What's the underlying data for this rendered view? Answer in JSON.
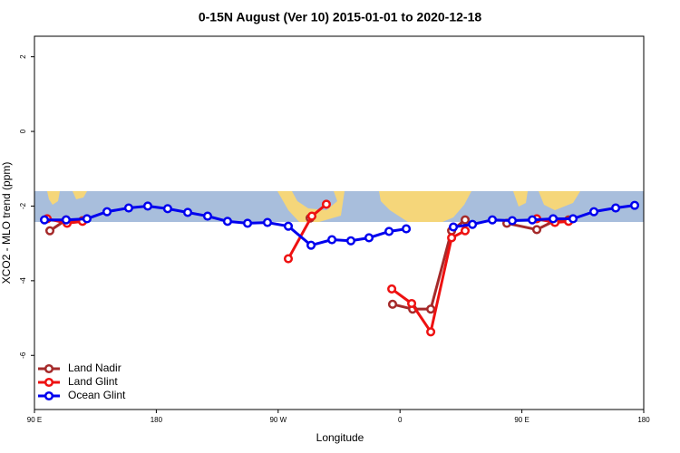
{
  "chart_data": {
    "type": "line",
    "title": "0-15N August (Ver 10)   2015-01-01 to 2020-12-18",
    "xlabel": "Longitude",
    "ylabel": "XCO2 - MLO trend (ppm)",
    "xlim": [
      90,
      540
    ],
    "ylim": [
      -7.45,
      2.55
    ],
    "xticks": [
      {
        "value": 90,
        "label": "90 E"
      },
      180,
      {
        "value": 270,
        "label": "90 W"
      },
      {
        "value": 360,
        "label": "0"
      },
      {
        "value": 450,
        "label": "90 E"
      },
      {
        "value": 540,
        "label": "180"
      }
    ],
    "yticks": [
      -6,
      -4,
      -2,
      0,
      2
    ],
    "legend": "bottom-left",
    "series": [
      {
        "name": "Land Nadir",
        "color": "#a52a2a",
        "x": [
          101.4,
          113.4,
          125.5,
          null,
          293.6,
          null,
          354.5,
          369.3,
          382.7,
          398.1,
          408.1,
          null,
          438.9,
          461.0,
          474.4,
          484.5
        ],
        "values": [
          -2.66,
          -2.37,
          -2.39,
          null,
          -2.32,
          null,
          -4.63,
          -4.76,
          -4.76,
          -2.66,
          -2.37,
          null,
          -2.46,
          -2.63,
          -2.39,
          -2.37
        ]
      },
      {
        "name": "Land Glint",
        "color": "#ee1111",
        "x": [
          99.4,
          114.1,
          125.5,
          null,
          277.5,
          294.9,
          305.6,
          null,
          353.9,
          368.6,
          382.7,
          398.1,
          408.1,
          null,
          461.0,
          474.4,
          484.5
        ],
        "values": [
          -2.34,
          -2.46,
          -2.41,
          null,
          -3.41,
          -2.27,
          -1.95,
          null,
          -4.22,
          -4.61,
          -5.37,
          -2.85,
          -2.66,
          null,
          -2.34,
          -2.44,
          -2.41
        ]
      },
      {
        "name": "Ocean Glint",
        "color": "#0000ee",
        "x": [
          97.4,
          113.4,
          128.8,
          143.6,
          159.6,
          173.7,
          188.4,
          203.2,
          217.9,
          232.6,
          247.4,
          262.1,
          277.5,
          294.3,
          309.7,
          323.7,
          337.1,
          351.9,
          364.6,
          null,
          399.4,
          413.5,
          428.2,
          442.9,
          457.7,
          473.1,
          487.8,
          503.2,
          519.3,
          533.3
        ],
        "values": [
          -2.37,
          -2.37,
          -2.34,
          -2.15,
          -2.05,
          -2.0,
          -2.07,
          -2.17,
          -2.27,
          -2.41,
          -2.46,
          -2.44,
          -2.54,
          -3.05,
          -2.9,
          -2.93,
          -2.85,
          -2.68,
          -2.61,
          null,
          -2.56,
          -2.49,
          -2.37,
          -2.39,
          -2.37,
          -2.34,
          -2.34,
          -2.15,
          -2.05,
          -1.98
        ]
      }
    ]
  }
}
